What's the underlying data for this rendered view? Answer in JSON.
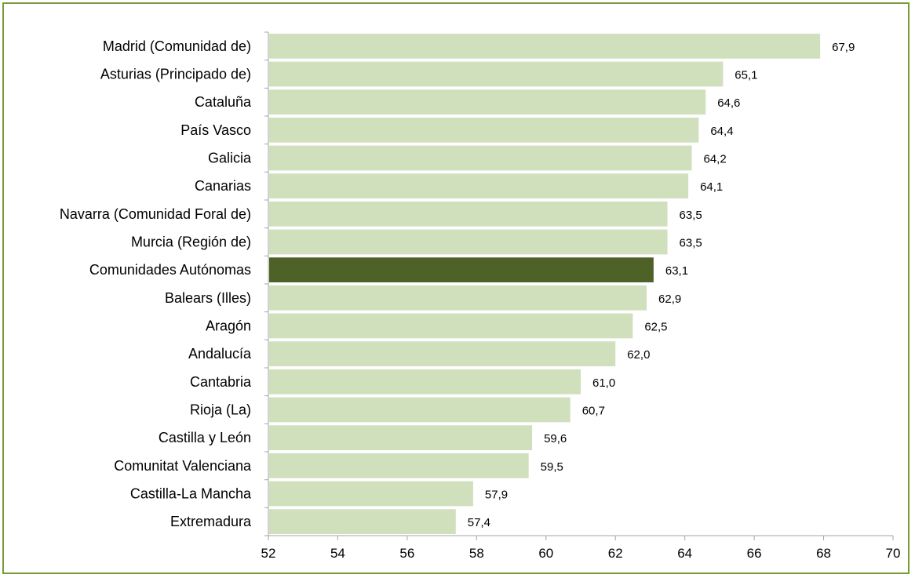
{
  "chart_data": {
    "type": "bar",
    "orientation": "horizontal",
    "categories": [
      "Madrid (Comunidad de)",
      "Asturias (Principado de)",
      "Cataluña",
      "País Vasco",
      "Galicia",
      "Canarias",
      "Navarra (Comunidad Foral de)",
      "Murcia (Región de)",
      "Comunidades Autónomas",
      "Balears (Illes)",
      "Aragón",
      "Andalucía",
      "Cantabria",
      "Rioja (La)",
      "Castilla y León",
      "Comunitat Valenciana",
      "Castilla-La Mancha",
      "Extremadura"
    ],
    "values": [
      67.9,
      65.1,
      64.6,
      64.4,
      64.2,
      64.1,
      63.5,
      63.5,
      63.1,
      62.9,
      62.5,
      62.0,
      61.0,
      60.7,
      59.6,
      59.5,
      57.9,
      57.4
    ],
    "value_labels": [
      "67,9",
      "65,1",
      "64,6",
      "64,4",
      "64,2",
      "64,1",
      "63,5",
      "63,5",
      "63,1",
      "62,9",
      "62,5",
      "62,0",
      "61,0",
      "60,7",
      "59,6",
      "59,5",
      "57,9",
      "57,4"
    ],
    "highlight_category": "Comunidades Autónomas",
    "xlim": [
      52,
      70
    ],
    "xticks": [
      52,
      54,
      56,
      58,
      60,
      62,
      64,
      66,
      68,
      70
    ],
    "title": "",
    "xlabel": "",
    "ylabel": "",
    "grid": false,
    "legend": "none",
    "colors": {
      "bar": "#d0dfbc",
      "highlight": "#4e6228",
      "frame": "#7a9a3a",
      "axis": "#a6a6a6"
    }
  }
}
